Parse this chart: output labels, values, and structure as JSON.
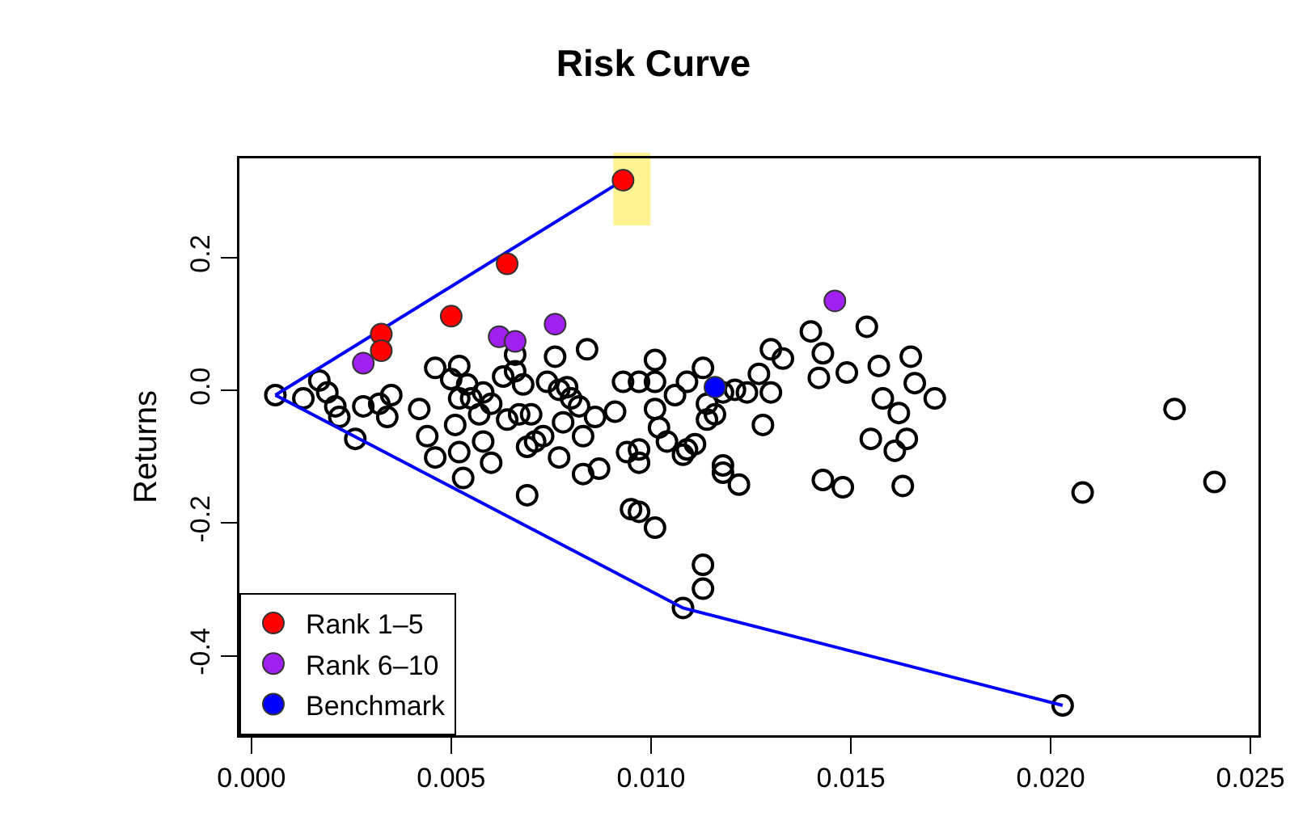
{
  "chart_data": {
    "type": "scatter",
    "title": "Risk Curve",
    "ylabel": "Returns",
    "xlim": [
      -0.0003,
      0.0252
    ],
    "ylim": [
      -0.52,
      0.35
    ],
    "xticks": [
      {
        "value": 0,
        "label": "0.000"
      },
      {
        "value": 0.005,
        "label": "0.005"
      },
      {
        "value": 0.01,
        "label": "0.010"
      },
      {
        "value": 0.015,
        "label": "0.015"
      },
      {
        "value": 0.02,
        "label": "0.020"
      },
      {
        "value": 0.025,
        "label": "0.025"
      }
    ],
    "yticks": [
      -0.4,
      -0.2,
      {
        "value": 0,
        "label": "0.0"
      },
      0.2
    ],
    "grid": false,
    "legend": "bottom left",
    "marker": "circle",
    "series": [
      {
        "color": "#000000",
        "x": [
          0.0006,
          0.0013,
          0.0017,
          0.0019,
          0.0021,
          0.0022,
          0.0026,
          0.0028,
          0.0032,
          0.0035,
          0.0034,
          0.0042,
          0.0044,
          0.0046,
          0.0046,
          0.0051,
          0.005,
          0.0052,
          0.0054,
          0.0052,
          0.0055,
          0.0058,
          0.006,
          0.0057,
          0.0052,
          0.0058,
          0.0063,
          0.0066,
          0.0068,
          0.0064,
          0.0067,
          0.007,
          0.0066,
          0.0076,
          0.0074,
          0.0077,
          0.0079,
          0.008,
          0.0078,
          0.0082,
          0.0084,
          0.0069,
          0.0071,
          0.0077,
          0.0073,
          0.0083,
          0.0101,
          0.0093,
          0.0097,
          0.0101,
          0.0109,
          0.0113,
          0.0106,
          0.0091,
          0.0086,
          0.0101,
          0.0102,
          0.0104,
          0.0109,
          0.0111,
          0.0094,
          0.0097,
          0.0114,
          0.0116,
          0.0114,
          0.0118,
          0.0121,
          0.0124,
          0.0127,
          0.013,
          0.0128,
          0.013,
          0.0133,
          0.014,
          0.0143,
          0.0142,
          0.0149,
          0.0154,
          0.0157,
          0.0165,
          0.0166,
          0.0158,
          0.0162,
          0.0155,
          0.0161,
          0.0164,
          0.0118,
          0.0171,
          0.0231,
          0.0053,
          0.006,
          0.0069,
          0.0083,
          0.0087,
          0.0095,
          0.0097,
          0.0101,
          0.0097,
          0.0108,
          0.0118,
          0.0122,
          0.0113,
          0.0113,
          0.0108,
          0.0143,
          0.0148,
          0.0163,
          0.0208,
          0.0241,
          0.0203
        ],
        "values": [
          -0.007,
          -0.012,
          0.015,
          -0.003,
          -0.024,
          -0.04,
          -0.073,
          -0.024,
          -0.02,
          -0.007,
          -0.04,
          -0.028,
          -0.069,
          0.034,
          -0.101,
          -0.052,
          0.017,
          0.037,
          0.009,
          -0.012,
          -0.012,
          -0.003,
          -0.02,
          -0.036,
          -0.093,
          -0.077,
          0.021,
          0.029,
          0.009,
          -0.044,
          -0.036,
          -0.036,
          0.054,
          0.051,
          0.013,
          0.001,
          0.005,
          -0.012,
          -0.048,
          -0.024,
          0.062,
          -0.085,
          -0.077,
          -0.101,
          -0.069,
          -0.069,
          0.046,
          0.013,
          0.013,
          0.013,
          0.013,
          0.034,
          -0.007,
          -0.032,
          -0.04,
          -0.028,
          -0.056,
          -0.077,
          -0.089,
          -0.081,
          -0.093,
          -0.089,
          -0.044,
          -0.036,
          -0.02,
          -0.003,
          0.001,
          -0.003,
          0.025,
          -0.003,
          -0.052,
          0.062,
          0.048,
          0.089,
          0.056,
          0.019,
          0.027,
          0.096,
          0.037,
          0.051,
          0.011,
          -0.012,
          -0.034,
          -0.073,
          -0.091,
          -0.073,
          -0.113,
          -0.012,
          -0.028,
          -0.132,
          -0.109,
          -0.158,
          -0.126,
          -0.118,
          -0.179,
          -0.183,
          -0.207,
          -0.109,
          -0.097,
          -0.124,
          -0.142,
          -0.263,
          -0.299,
          -0.328,
          -0.135,
          -0.146,
          -0.144,
          -0.154,
          -0.138,
          -0.475
        ]
      },
      {
        "type": "line",
        "color": "#0000ff",
        "marker": "none",
        "x": [
          0.0006,
          0.0093
        ],
        "values": [
          -0.007,
          0.317
        ]
      },
      {
        "type": "line",
        "color": "#0000ff",
        "marker": "none",
        "x": [
          0.0006,
          0.0108,
          0.0203
        ],
        "values": [
          -0.007,
          -0.328,
          -0.475
        ]
      },
      {
        "name": "Rank 1–5",
        "color": "#ff0000",
        "x": [
          0.0093,
          0.0064,
          0.005,
          0.00325,
          0.00325
        ],
        "values": [
          0.317,
          0.191,
          0.112,
          0.085,
          0.06
        ]
      },
      {
        "name": "Rank 6–10",
        "color": "#a020f0",
        "x": [
          0.0028,
          0.0062,
          0.0066,
          0.0076,
          0.0146
        ],
        "values": [
          0.041,
          0.081,
          0.074,
          0.1,
          0.135
        ]
      },
      {
        "name": "Benchmark",
        "color": "#0000ff",
        "x": [
          0.0116
        ],
        "values": [
          0.005
        ]
      }
    ]
  }
}
